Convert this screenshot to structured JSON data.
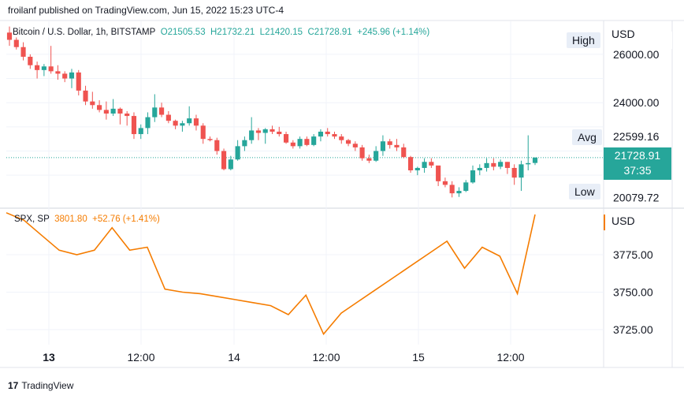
{
  "header": {
    "published_line": "froilanf published on TradingView.com, Jun 15, 2022 15:23 UTC-4"
  },
  "main_legend": {
    "symbol": "Bitcoin / U.S. Dollar, 1h, BITSTAMP",
    "open": "O21505.53",
    "high": "H21732.21",
    "low": "L21420.15",
    "close": "C21728.91",
    "change": "+245.96 (+1.14%)"
  },
  "price_axis": {
    "currency": "USD",
    "labels": [
      "26000.00",
      "24000.00",
      "22599.16",
      "20079.72"
    ],
    "high_tag": "High",
    "avg_tag": "Avg",
    "low_tag": "Low",
    "current_price": "21728.91",
    "countdown": "37:35"
  },
  "spx_legend": {
    "symbol": "SPX, SP",
    "value": "3801.80",
    "change": "+52.76 (+1.41%)"
  },
  "spx_axis": {
    "currency": "USD",
    "labels": [
      "3775.00",
      "3750.00",
      "3725.00"
    ]
  },
  "time_axis": {
    "labels": [
      "13",
      "12:00",
      "14",
      "12:00",
      "15",
      "12:00"
    ]
  },
  "footer": {
    "brand": "TradingView",
    "logo_text": "17"
  },
  "colors": {
    "up": "#26a69a",
    "down": "#ef5350",
    "spx_line": "#f57c00",
    "grid": "#f0f3fa"
  },
  "chart_data": [
    {
      "type": "candlestick",
      "title": "Bitcoin / U.S. Dollar, 1h, BITSTAMP",
      "ylim": [
        19700,
        27400
      ],
      "x_tick_labels": [
        "13",
        "12:00",
        "14",
        "12:00",
        "15",
        "12:00"
      ],
      "y_tick_labels": [
        "26000.00",
        "24000.00"
      ],
      "candles": [
        [
          26900,
          27150,
          26350,
          26600
        ],
        [
          26600,
          26700,
          26200,
          26300
        ],
        [
          26300,
          26500,
          25750,
          25900
        ],
        [
          25900,
          26000,
          25400,
          25550
        ],
        [
          25550,
          25700,
          25000,
          25350
        ],
        [
          25350,
          25600,
          25100,
          25500
        ],
        [
          25500,
          26350,
          25200,
          25300
        ],
        [
          25300,
          25550,
          24950,
          25200
        ],
        [
          25200,
          25300,
          24850,
          25000
        ],
        [
          25000,
          25400,
          24600,
          25250
        ],
        [
          25250,
          25350,
          24300,
          24500
        ],
        [
          24500,
          24700,
          23900,
          24050
        ],
        [
          24050,
          24450,
          23750,
          23900
        ],
        [
          23900,
          24100,
          23600,
          23700
        ],
        [
          23700,
          24050,
          23300,
          23550
        ],
        [
          23550,
          24150,
          23450,
          23750
        ],
        [
          23750,
          23800,
          23100,
          23550
        ],
        [
          23550,
          23650,
          23050,
          23450
        ],
        [
          23450,
          23600,
          22500,
          22700
        ],
        [
          22700,
          23100,
          22500,
          22950
        ],
        [
          22950,
          23600,
          22700,
          23400
        ],
        [
          23400,
          24350,
          23200,
          23800
        ],
        [
          23800,
          24000,
          23400,
          23500
        ],
        [
          23500,
          23650,
          23150,
          23250
        ],
        [
          23250,
          23300,
          22900,
          23050
        ],
        [
          23050,
          23250,
          22800,
          23150
        ],
        [
          23150,
          23850,
          23050,
          23350
        ],
        [
          23350,
          23500,
          22850,
          23050
        ],
        [
          23050,
          23150,
          22300,
          22500
        ],
        [
          22500,
          22600,
          22400,
          22450
        ],
        [
          22450,
          22550,
          21850,
          22000
        ],
        [
          22000,
          22100,
          21200,
          21250
        ],
        [
          21250,
          21800,
          21200,
          21650
        ],
        [
          21650,
          22450,
          21600,
          22200
        ],
        [
          22200,
          22600,
          22000,
          22450
        ],
        [
          22450,
          23400,
          22300,
          22850
        ],
        [
          22850,
          22950,
          22450,
          22750
        ],
        [
          22750,
          22950,
          22300,
          22900
        ],
        [
          22900,
          23050,
          22700,
          22800
        ],
        [
          22800,
          23000,
          22600,
          22700
        ],
        [
          22700,
          22800,
          22300,
          22350
        ],
        [
          22350,
          22450,
          22100,
          22200
        ],
        [
          22200,
          22600,
          22100,
          22500
        ],
        [
          22500,
          22600,
          22200,
          22250
        ],
        [
          22250,
          22700,
          22200,
          22600
        ],
        [
          22600,
          22900,
          22400,
          22800
        ],
        [
          22800,
          22950,
          22600,
          22700
        ],
        [
          22700,
          22800,
          22500,
          22600
        ],
        [
          22600,
          22700,
          22300,
          22450
        ],
        [
          22450,
          22500,
          22200,
          22300
        ],
        [
          22300,
          22400,
          22000,
          22150
        ],
        [
          22150,
          22250,
          21600,
          21700
        ],
        [
          21700,
          21850,
          21500,
          21600
        ],
        [
          21600,
          22200,
          21550,
          22000
        ],
        [
          22000,
          22650,
          21800,
          22400
        ],
        [
          22400,
          22500,
          22100,
          22250
        ],
        [
          22250,
          22500,
          22000,
          22150
        ],
        [
          22150,
          22300,
          21700,
          21750
        ],
        [
          21750,
          21800,
          21100,
          21200
        ],
        [
          21200,
          21350,
          21000,
          21300
        ],
        [
          21300,
          21700,
          21100,
          21550
        ],
        [
          21550,
          21700,
          21300,
          21400
        ],
        [
          21400,
          21350,
          20550,
          20750
        ],
        [
          20750,
          20900,
          20500,
          20600
        ],
        [
          20600,
          20750,
          20080,
          20250
        ],
        [
          20250,
          20500,
          20100,
          20350
        ],
        [
          20350,
          20800,
          20300,
          20700
        ],
        [
          20700,
          21400,
          20650,
          21200
        ],
        [
          21200,
          21450,
          21000,
          21300
        ],
        [
          21300,
          21700,
          21150,
          21500
        ],
        [
          21500,
          21700,
          21200,
          21350
        ],
        [
          21350,
          21650,
          21250,
          21550
        ],
        [
          21550,
          21550,
          21050,
          21300
        ],
        [
          21300,
          21450,
          20600,
          20900
        ],
        [
          20900,
          21600,
          20350,
          21450
        ],
        [
          21450,
          22650,
          21200,
          21500
        ],
        [
          21505.53,
          21732.21,
          21420.15,
          21728.91
        ]
      ]
    },
    {
      "type": "line",
      "title": "SPX, SP",
      "ylim": [
        3715,
        3805
      ],
      "y_tick_labels": [
        "3775.00",
        "3750.00",
        "3725.00"
      ],
      "series": [
        {
          "name": "SPX, SP",
          "values": [
            3803,
            3798,
            3788,
            3778,
            3775,
            3778,
            3793,
            3778,
            3780,
            3752,
            3750,
            3749,
            3747,
            3745,
            3743,
            3741,
            3735,
            3748,
            3722,
            3736,
            3744,
            3752,
            3760,
            3768,
            3776,
            3784,
            3766,
            3780,
            3774,
            3749,
            3801.8
          ]
        }
      ]
    }
  ]
}
